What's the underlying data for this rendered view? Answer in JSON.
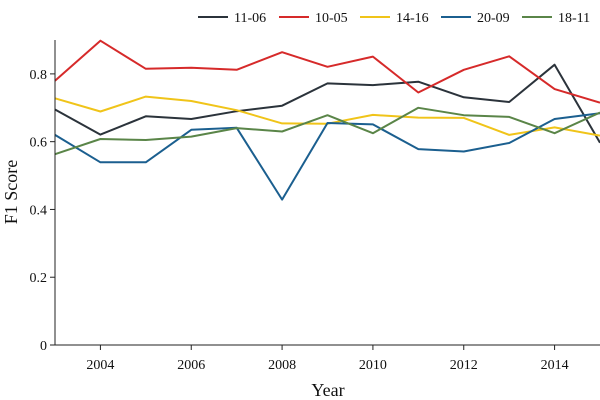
{
  "chart_data": {
    "type": "line",
    "xlabel": "Year",
    "ylabel": "F1 Score",
    "xlim": [
      2003,
      2015
    ],
    "ylim": [
      0,
      0.9
    ],
    "x_ticks": [
      2004,
      2006,
      2008,
      2010,
      2012,
      2014
    ],
    "y_ticks": [
      0,
      0.2,
      0.4,
      0.6,
      0.8
    ],
    "y_tick_labels": [
      "0",
      "0.2",
      "0.4",
      "0.6",
      "0.8"
    ],
    "grid": false,
    "legend_position": "top-right",
    "x": [
      2003,
      2004,
      2005,
      2006,
      2007,
      2008,
      2009,
      2010,
      2011,
      2012,
      2013,
      2014,
      2015
    ],
    "series": [
      {
        "name": "11-06",
        "color": "#2b333b",
        "values": [
          0.695,
          0.621,
          0.675,
          0.667,
          0.69,
          0.706,
          0.772,
          0.767,
          0.777,
          0.731,
          0.717,
          0.827,
          0.597
        ]
      },
      {
        "name": "10-05",
        "color": "#d62a2a",
        "values": [
          0.78,
          0.898,
          0.815,
          0.818,
          0.812,
          0.864,
          0.821,
          0.851,
          0.745,
          0.812,
          0.852,
          0.755,
          0.715
        ]
      },
      {
        "name": "14-16",
        "color": "#f0c419",
        "values": [
          0.728,
          0.689,
          0.733,
          0.72,
          0.693,
          0.654,
          0.653,
          0.679,
          0.671,
          0.67,
          0.62,
          0.642,
          0.618
        ]
      },
      {
        "name": "20-09",
        "color": "#1b5f8f",
        "values": [
          0.62,
          0.539,
          0.539,
          0.635,
          0.641,
          0.429,
          0.655,
          0.651,
          0.578,
          0.571,
          0.596,
          0.667,
          0.684
        ]
      },
      {
        "name": "18-11",
        "color": "#5a8548",
        "values": [
          0.563,
          0.608,
          0.605,
          0.615,
          0.64,
          0.63,
          0.678,
          0.625,
          0.7,
          0.678,
          0.673,
          0.625,
          0.686
        ]
      }
    ]
  }
}
